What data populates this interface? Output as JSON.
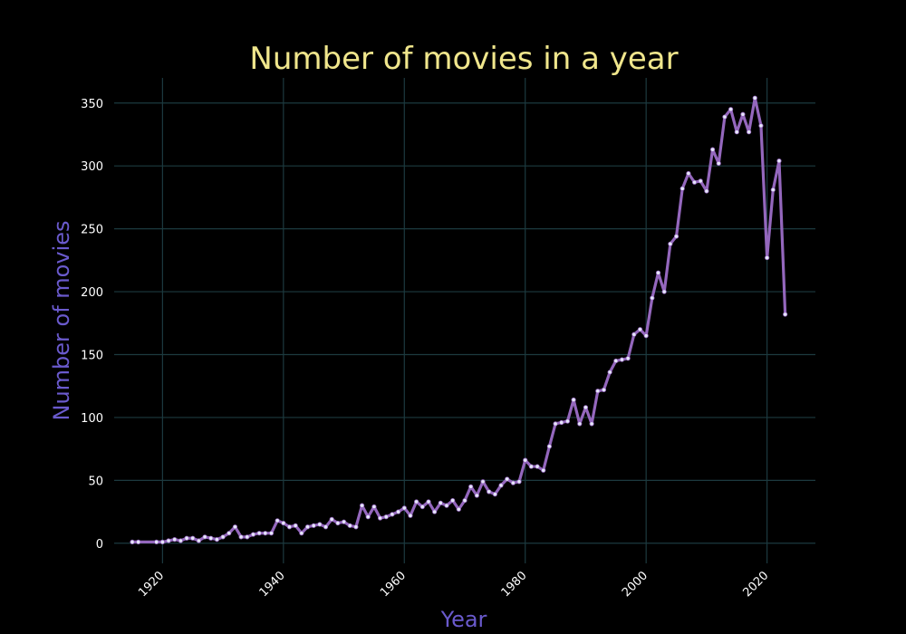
{
  "chart_data": {
    "type": "line",
    "title": "Number of movies in a year",
    "xlabel": "Year",
    "ylabel": "Number of movies",
    "xlim": [
      1912,
      2028
    ],
    "ylim": [
      -16,
      370
    ],
    "x_ticks": [
      1920,
      1940,
      1960,
      1980,
      2000,
      2020
    ],
    "y_ticks": [
      0,
      50,
      100,
      150,
      200,
      250,
      300,
      350
    ],
    "grid": true,
    "legend": "none",
    "colors": {
      "background": "#000000",
      "title": "#f0e68c",
      "axis_label": "#6a5acd",
      "line": "#9467bd",
      "marker": "#e6e6fa",
      "grid": "#1c3a3f",
      "tick_text": "#ffffff"
    },
    "series": [
      {
        "x": [
          1915,
          1916,
          1919,
          1920,
          1921,
          1922,
          1923,
          1924,
          1925,
          1926,
          1927,
          1928,
          1929,
          1930,
          1931,
          1932,
          1933,
          1934,
          1935,
          1936,
          1937,
          1938,
          1939,
          1940,
          1941,
          1942,
          1943,
          1944,
          1945,
          1946,
          1947,
          1948,
          1949,
          1950,
          1951,
          1952,
          1953,
          1954,
          1955,
          1956,
          1957,
          1958,
          1959,
          1960,
          1961,
          1962,
          1963,
          1964,
          1965,
          1966,
          1967,
          1968,
          1969,
          1970,
          1971,
          1972,
          1973,
          1974,
          1975,
          1976,
          1977,
          1978,
          1979,
          1980,
          1981,
          1982,
          1983,
          1984,
          1985,
          1986,
          1987,
          1988,
          1989,
          1990,
          1991,
          1992,
          1993,
          1994,
          1995,
          1996,
          1997,
          1998,
          1999,
          2000,
          2001,
          2002,
          2003,
          2004,
          2005,
          2006,
          2007,
          2008,
          2009,
          2010,
          2011,
          2012,
          2013,
          2014,
          2015,
          2016,
          2017,
          2018,
          2019,
          2020,
          2021,
          2022,
          2023
        ],
        "y": [
          1,
          1,
          1,
          1,
          2,
          3,
          2,
          4,
          4,
          2,
          5,
          4,
          3,
          5,
          8,
          13,
          5,
          5,
          7,
          8,
          8,
          8,
          18,
          16,
          13,
          14,
          8,
          13,
          14,
          15,
          13,
          19,
          16,
          17,
          14,
          13,
          30,
          21,
          29,
          20,
          21,
          23,
          25,
          28,
          22,
          33,
          29,
          33,
          25,
          32,
          30,
          34,
          27,
          34,
          45,
          38,
          49,
          41,
          39,
          46,
          51,
          48,
          49,
          66,
          61,
          61,
          58,
          77,
          95,
          96,
          97,
          114,
          95,
          108,
          95,
          121,
          122,
          136,
          145,
          146,
          147,
          166,
          170,
          165,
          195,
          215,
          200,
          238,
          244,
          282,
          294,
          287,
          288,
          280,
          313,
          302,
          339,
          345,
          327,
          341,
          327,
          354,
          332,
          227,
          281,
          304,
          182
        ]
      }
    ]
  }
}
